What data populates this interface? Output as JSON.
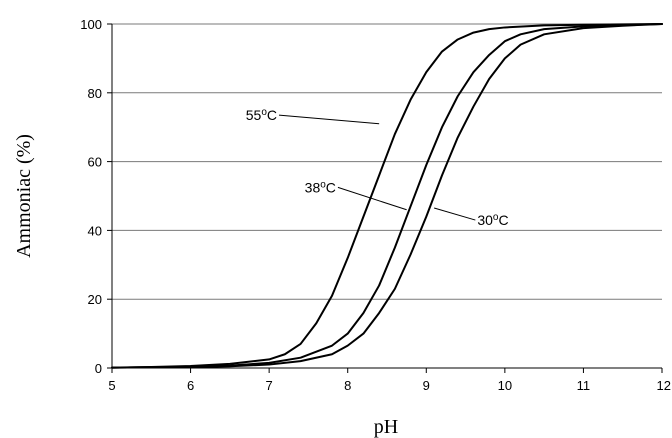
{
  "chart_data": {
    "type": "line",
    "title": "",
    "xlabel": "pH",
    "ylabel": "Ammoniac (%)",
    "xlim": [
      5,
      12
    ],
    "ylim": [
      0,
      100
    ],
    "x_ticks": [
      5,
      6,
      7,
      8,
      9,
      10,
      11,
      12
    ],
    "y_ticks": [
      0,
      20,
      40,
      60,
      80,
      100
    ],
    "grid": "horizontal",
    "legend": "none",
    "line_color": "#000000",
    "series": [
      {
        "name": "55°C",
        "label_base": "55",
        "label_sup": "o",
        "label_unit": "C",
        "x": [
          5,
          5.5,
          6,
          6.5,
          7,
          7.2,
          7.4,
          7.6,
          7.8,
          8,
          8.2,
          8.4,
          8.6,
          8.8,
          9,
          9.2,
          9.4,
          9.6,
          9.8,
          10,
          10.5,
          11,
          12
        ],
        "values": [
          0.1,
          0.3,
          0.6,
          1.2,
          2.5,
          4,
          7,
          13,
          21,
          32,
          44,
          56,
          68,
          78,
          86,
          92,
          95.5,
          97.5,
          98.5,
          99,
          99.6,
          99.8,
          100
        ]
      },
      {
        "name": "38°C",
        "label_base": "38",
        "label_sup": "o",
        "label_unit": "C",
        "x": [
          5,
          5.5,
          6,
          6.5,
          7,
          7.4,
          7.8,
          8,
          8.2,
          8.4,
          8.6,
          8.8,
          9,
          9.2,
          9.4,
          9.6,
          9.8,
          10,
          10.2,
          10.5,
          11,
          11.5,
          12
        ],
        "values": [
          0.1,
          0.2,
          0.3,
          0.7,
          1.5,
          3,
          6.5,
          10,
          16,
          24,
          35,
          47,
          59,
          70,
          79,
          86,
          91,
          95,
          97,
          98.5,
          99.3,
          99.7,
          100
        ]
      },
      {
        "name": "30°C",
        "label_base": "30",
        "label_sup": "o",
        "label_unit": "C",
        "x": [
          5,
          5.5,
          6,
          6.5,
          7,
          7.4,
          7.8,
          8,
          8.2,
          8.4,
          8.6,
          8.8,
          9,
          9.2,
          9.4,
          9.6,
          9.8,
          10,
          10.2,
          10.5,
          11,
          11.5,
          12
        ],
        "values": [
          0.1,
          0.2,
          0.3,
          0.5,
          1,
          2,
          4,
          6.5,
          10,
          16,
          23,
          33,
          44,
          56,
          67,
          76,
          84,
          90,
          94,
          97,
          98.8,
          99.5,
          100
        ]
      }
    ],
    "annotations": [
      {
        "series_index": 0,
        "text_x": 7.1,
        "text_y": 73.5,
        "point_x": 8.4,
        "point_y": 71,
        "anchor": "end"
      },
      {
        "series_index": 1,
        "text_x": 7.85,
        "text_y": 52.5,
        "point_x": 8.75,
        "point_y": 46,
        "anchor": "end"
      },
      {
        "series_index": 2,
        "text_x": 9.65,
        "text_y": 43,
        "point_x": 9.1,
        "point_y": 46.5,
        "anchor": "start"
      }
    ]
  }
}
